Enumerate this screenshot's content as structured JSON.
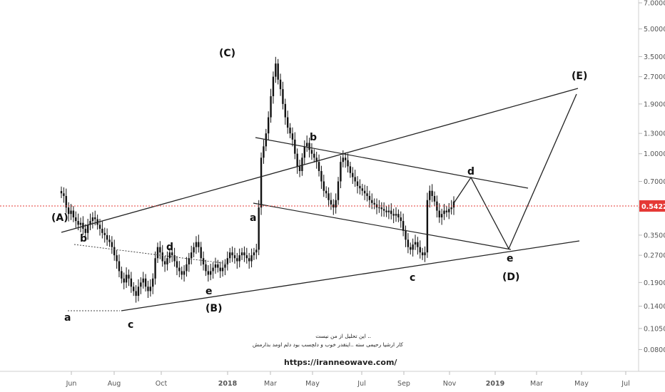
{
  "chart_data": {
    "type": "candlestick",
    "y_scale": "log",
    "ylim": [
      0.07,
      7.0
    ],
    "x_tick_labels": [
      "Jun",
      "Aug",
      "Oct",
      "2018",
      "Mar",
      "May",
      "Jul",
      "Sep",
      "Nov",
      "2019",
      "Mar",
      "May",
      "Jul"
    ],
    "y_tick_labels": [
      "7.00000",
      "5.00000",
      "3.50000",
      "2.70000",
      "1.90000",
      "1.30000",
      "1.00000",
      "0.70000",
      "0.50000",
      "0.35000",
      "0.27000",
      "0.19000",
      "0.14000",
      "0.10500",
      "0.08000"
    ],
    "current_price": "0.54228",
    "colors": {
      "price_line": "#e53935",
      "price_tag": "#e53935",
      "candles": "#111111",
      "trendlines": "#222222"
    },
    "wave_labels": [
      "(A)",
      "(B)",
      "(C)",
      "(D)",
      "(E)",
      "a",
      "b",
      "c",
      "d",
      "e",
      "a",
      "b",
      "c",
      "d",
      "e"
    ],
    "annotations": {
      "note_line_1": "این تحلیل از من نیست ..",
      "note_line_2": "کار ارشیا رحیمی سته ..اینقدر خوب و دلچسب بود دلم اومد بذارمش",
      "url": "https://iranneowave.com/"
    },
    "series": [
      {
        "values": [
          [
            0.6,
            0.58,
            0.5,
            0.46,
            0.48,
            0.44,
            0.42,
            0.4,
            0.41,
            0.38,
            0.36,
            0.4,
            0.42,
            0.44,
            0.43,
            0.4,
            0.38,
            0.36,
            0.35,
            0.33,
            0.32,
            0.3,
            0.27,
            0.25,
            0.22,
            0.2,
            0.19,
            0.21,
            0.2,
            0.18,
            0.17,
            0.16,
            0.18,
            0.19,
            0.2,
            0.18,
            0.17,
            0.18,
            0.2,
            0.26,
            0.3,
            0.28,
            0.25,
            0.24,
            0.26,
            0.28,
            0.27,
            0.25,
            0.23,
            0.22,
            0.21,
            0.22,
            0.24,
            0.26,
            0.28,
            0.3,
            0.32,
            0.3,
            0.26,
            0.24,
            0.22,
            0.21,
            0.22,
            0.23,
            0.24,
            0.23,
            0.22,
            0.23,
            0.24,
            0.26,
            0.28,
            0.27,
            0.26,
            0.25,
            0.27,
            0.28,
            0.27,
            0.26,
            0.25,
            0.27,
            0.28,
            0.29,
            0.5,
            0.95,
            1.1,
            1.3,
            1.6,
            2.1,
            2.7,
            3.2,
            2.6,
            2.3,
            1.9,
            1.6,
            1.4,
            1.3,
            1.2,
            1.0,
            0.85,
            0.8,
            0.95,
            1.1,
            1.15,
            1.05,
            1.0,
            0.95,
            0.9,
            0.8,
            0.7,
            0.62,
            0.6,
            0.55,
            0.52,
            0.5,
            0.55,
            0.7,
            0.9,
            0.95,
            0.92,
            0.85,
            0.78,
            0.74,
            0.7,
            0.66,
            0.64,
            0.62,
            0.6,
            0.58,
            0.55,
            0.53,
            0.52,
            0.5,
            0.5,
            0.49,
            0.48,
            0.47,
            0.48,
            0.46,
            0.45,
            0.46,
            0.44,
            0.42,
            0.37,
            0.33,
            0.3,
            0.29,
            0.31,
            0.32,
            0.3,
            0.28,
            0.27,
            0.28,
            0.55,
            0.62,
            0.58,
            0.54,
            0.48,
            0.44,
            0.46,
            0.48,
            0.47,
            0.49,
            0.5,
            0.54
          ]
        ]
      }
    ]
  }
}
